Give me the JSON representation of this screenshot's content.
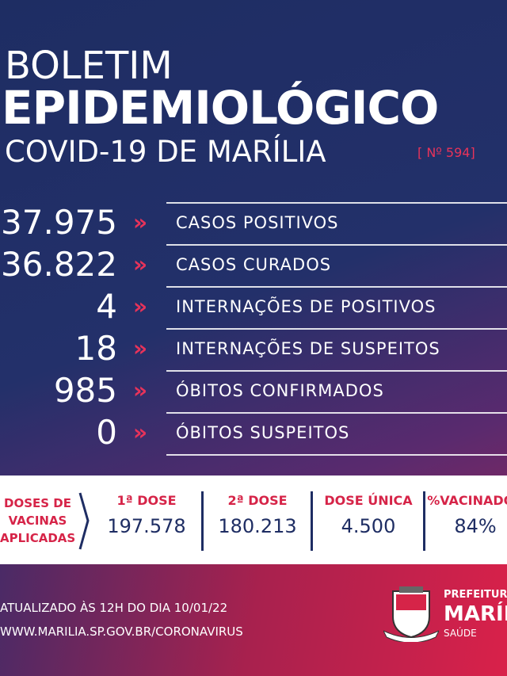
{
  "header": {
    "line1": "BOLETIM",
    "line2": "EPIDEMIOLÓGICO",
    "line3": "COVID-19 DE MARÍLIA",
    "number": "[ Nº 594]"
  },
  "stats": [
    {
      "value": "37.975",
      "label": "CASOS POSITIVOS"
    },
    {
      "value": "36.822",
      "label": "CASOS CURADOS"
    },
    {
      "value": "4",
      "label": "INTERNAÇÕES DE POSITIVOS"
    },
    {
      "value": "18",
      "label": "INTERNAÇÕES DE SUSPEITOS"
    },
    {
      "value": "985",
      "label": "ÓBITOS CONFIRMADOS"
    },
    {
      "value": "0",
      "label": "ÓBITOS SUSPEITOS"
    }
  ],
  "vaccines": {
    "label": [
      "DOSES DE",
      "VACINAS",
      "APLICADAS"
    ],
    "columns": [
      {
        "title": "1ª DOSE",
        "value": "197.578"
      },
      {
        "title": "2ª DOSE",
        "value": "180.213"
      },
      {
        "title": "DOSE ÚNICA",
        "value": "4.500"
      },
      {
        "title": "%VACINADOS",
        "value": "84%"
      }
    ]
  },
  "footer": {
    "updated": "ATUALIZADO ÀS 12H DO DIA 10/01/22",
    "url": "WWW.MARILIA.SP.GOV.BR/CORONAVIRUS"
  },
  "logo": {
    "line1": "PREFEITURA",
    "line2": "MARÍLIA",
    "line3": "SAÚDE"
  }
}
